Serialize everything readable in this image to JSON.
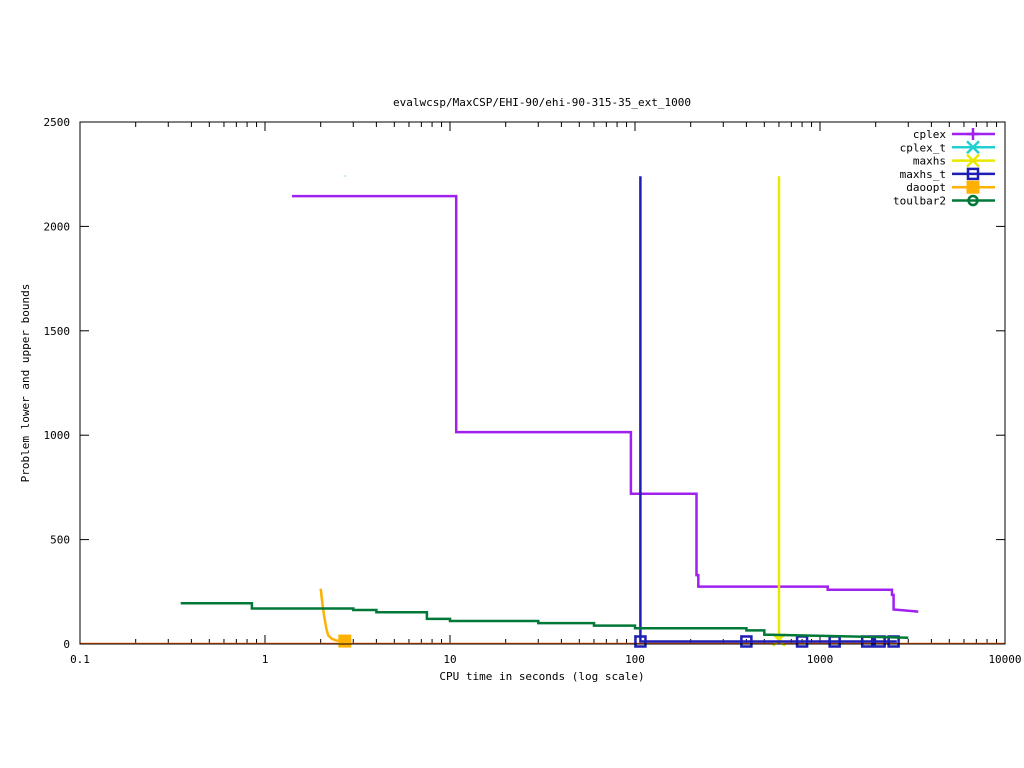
{
  "chart_data": {
    "type": "line",
    "title": "evalwcsp/MaxCSP/EHI-90/ehi-90-315-35_ext_1000",
    "xlabel": "CPU time in seconds (log scale)",
    "ylabel": "Problem lower and upper bounds",
    "xscale": "log",
    "xlim": [
      0.1,
      10000
    ],
    "ylim": [
      0,
      2500
    ],
    "xticks": [
      0.1,
      1,
      10,
      100,
      1000,
      10000
    ],
    "xtick_labels": [
      "0.1",
      "1",
      "10",
      "100",
      "1000",
      "10000"
    ],
    "yticks": [
      0,
      500,
      1000,
      1500,
      2000,
      2500
    ],
    "ytick_labels": [
      "0",
      "500",
      "1000",
      "1500",
      "2000",
      "2500"
    ],
    "grid": false,
    "legend_position": "top-right",
    "series": [
      {
        "name": "cplex",
        "color": "#a020f0",
        "marker": "plus",
        "step": true,
        "x": [
          1.4,
          10.8,
          10.8,
          95,
          95,
          215,
          215,
          220,
          220,
          1100,
          1100,
          2450,
          2450,
          2500,
          2500,
          3400
        ],
        "y": [
          2145,
          2145,
          1015,
          1015,
          720,
          720,
          330,
          330,
          275,
          275,
          260,
          260,
          235,
          235,
          165,
          155
        ],
        "markers_x": [],
        "markers_y": []
      },
      {
        "name": "cplex_t",
        "color": "#20d0d0",
        "marker": "x",
        "step": false,
        "x": [
          2.7,
          2.7
        ],
        "y": [
          2240,
          2243
        ],
        "markers_x": [],
        "markers_y": []
      },
      {
        "name": "maxhs",
        "color": "#e8e800",
        "marker": "x",
        "step": false,
        "x": [
          600,
          600,
          600
        ],
        "y": [
          2240,
          20,
          20
        ],
        "markers_x": [
          600
        ],
        "markers_y": [
          20
        ]
      },
      {
        "name": "maxhs_t",
        "color": "#1e1eb4",
        "marker": "square",
        "step": false,
        "x": [
          107,
          107,
          107,
          2600
        ],
        "y": [
          2240,
          12,
          12,
          12
        ],
        "markers_x": [
          107,
          400,
          800,
          1200,
          1800,
          2100,
          2500
        ],
        "markers_y": [
          12,
          12,
          12,
          12,
          12,
          12,
          12
        ]
      },
      {
        "name": "daoopt",
        "color": "#ffb000",
        "marker": "square-filled",
        "step": false,
        "x": [
          2.0,
          2.05,
          2.1,
          2.15,
          2.2,
          2.3,
          2.4,
          2.5,
          2.6,
          2.7
        ],
        "y": [
          265,
          180,
          120,
          70,
          40,
          25,
          18,
          15,
          14,
          14
        ],
        "markers_x": [
          2.7
        ],
        "markers_y": [
          14
        ]
      },
      {
        "name": "toulbar2",
        "color": "#007838",
        "marker": "circle",
        "step": true,
        "x": [
          0.35,
          0.85,
          0.85,
          3,
          3,
          4,
          4,
          7.5,
          7.5,
          10,
          10,
          30,
          30,
          60,
          60,
          100,
          100,
          400,
          400,
          500,
          500,
          3000
        ],
        "y": [
          195,
          195,
          170,
          170,
          163,
          163,
          152,
          152,
          120,
          120,
          110,
          110,
          100,
          100,
          88,
          88,
          75,
          75,
          65,
          65,
          45,
          30
        ],
        "markers_x": [],
        "markers_y": []
      }
    ]
  }
}
